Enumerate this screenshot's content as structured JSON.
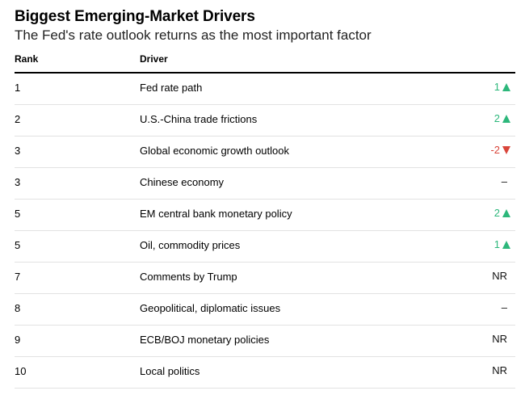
{
  "chart_data": {
    "type": "table",
    "title": "Biggest Emerging-Market Drivers",
    "subtitle": "The Fed's rate outlook returns as the most important factor",
    "columns": [
      "Rank",
      "Driver"
    ],
    "rows": [
      {
        "rank": "1",
        "driver": "Fed rate path",
        "change": "1",
        "direction": "up"
      },
      {
        "rank": "2",
        "driver": "U.S.-China trade frictions",
        "change": "2",
        "direction": "up"
      },
      {
        "rank": "3",
        "driver": "Global economic growth outlook",
        "change": "-2",
        "direction": "down"
      },
      {
        "rank": "3",
        "driver": "Chinese economy",
        "change": "–",
        "direction": "flat"
      },
      {
        "rank": "5",
        "driver": "EM central bank monetary policy",
        "change": "2",
        "direction": "up"
      },
      {
        "rank": "5",
        "driver": "Oil, commodity prices",
        "change": "1",
        "direction": "up"
      },
      {
        "rank": "7",
        "driver": "Comments by Trump",
        "change": "NR",
        "direction": "nr"
      },
      {
        "rank": "8",
        "driver": "Geopolitical, diplomatic issues",
        "change": "–",
        "direction": "flat"
      },
      {
        "rank": "9",
        "driver": "ECB/BOJ monetary policies",
        "change": "NR",
        "direction": "nr"
      },
      {
        "rank": "10",
        "driver": "Local politics",
        "change": "NR",
        "direction": "nr"
      }
    ],
    "colors": {
      "up": "#2db77b",
      "down": "#d9453a"
    }
  }
}
